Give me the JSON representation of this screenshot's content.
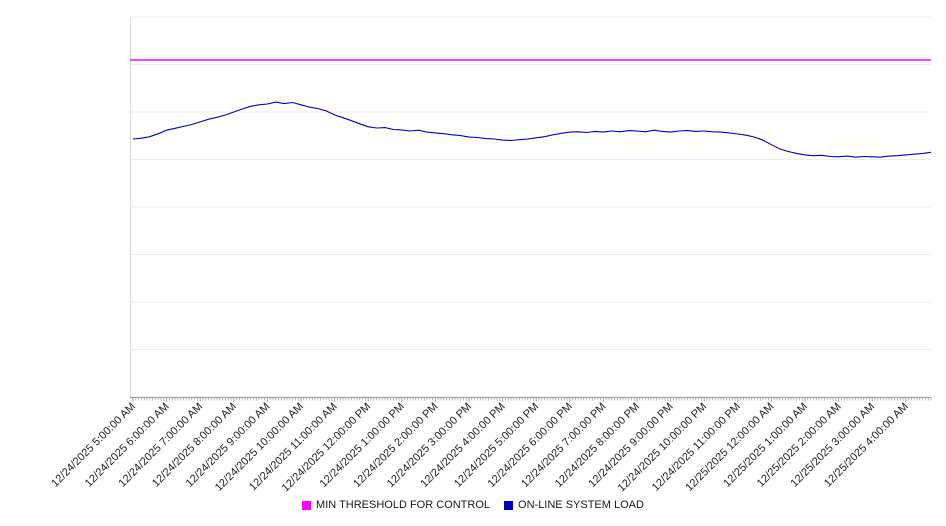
{
  "chart_data": {
    "type": "line",
    "title": "",
    "xlabel": "",
    "ylabel": "",
    "ylim": [
      0,
      100
    ],
    "grid": "horizontal",
    "legend_position": "bottom-center",
    "x_labels": [
      "12/24/2025 5:00:00 AM",
      "12/24/2025 6:00:00 AM",
      "12/24/2025 7:00:00 AM",
      "12/24/2025 8:00:00 AM",
      "12/24/2025 9:00:00 AM",
      "12/24/2025 10:00:00 AM",
      "12/24/2025 11:00:00 AM",
      "12/24/2025 12:00:00 PM",
      "12/24/2025 1:00:00 PM",
      "12/24/2025 2:00:00 PM",
      "12/24/2025 3:00:00 PM",
      "12/24/2025 4:00:00 PM",
      "12/24/2025 5:00:00 PM",
      "12/24/2025 6:00:00 PM",
      "12/24/2025 7:00:00 PM",
      "12/24/2025 8:00:00 PM",
      "12/24/2025 9:00:00 PM",
      "12/24/2025 10:00:00 PM",
      "12/24/2025 11:00:00 PM",
      "12/25/2025 12:00:00 AM",
      "12/25/2025 1:00:00 AM",
      "12/25/2025 2:00:00 AM",
      "12/25/2025 3:00:00 AM",
      "12/25/2025 4:00:00 AM"
    ],
    "x_start": "12/24/2025 5:00:00 AM",
    "x_interval_minutes": 15,
    "series": [
      {
        "name": "MIN THRESHOLD FOR CONTROL",
        "color": "#ff00ff",
        "constant_value": 88.7
      },
      {
        "name": "ON-LINE SYSTEM LOAD",
        "color": "#0000bf",
        "values": [
          67.9,
          68.1,
          68.5,
          69.3,
          70.2,
          70.7,
          71.2,
          71.7,
          72.4,
          73.1,
          73.6,
          74.2,
          75.0,
          75.8,
          76.5,
          76.9,
          77.1,
          77.6,
          77.2,
          77.5,
          76.9,
          76.3,
          75.9,
          75.3,
          74.2,
          73.5,
          72.7,
          71.9,
          71.1,
          70.8,
          70.9,
          70.4,
          70.3,
          70.0,
          70.2,
          69.7,
          69.5,
          69.3,
          69.0,
          68.8,
          68.4,
          68.3,
          68.0,
          67.9,
          67.6,
          67.5,
          67.7,
          67.9,
          68.2,
          68.5,
          69.0,
          69.4,
          69.7,
          69.8,
          69.6,
          69.9,
          69.7,
          70.0,
          69.8,
          70.1,
          70.0,
          69.8,
          70.2,
          69.9,
          69.7,
          70.0,
          70.1,
          69.9,
          70.0,
          69.8,
          69.7,
          69.5,
          69.2,
          68.9,
          68.4,
          67.6,
          66.4,
          65.3,
          64.6,
          64.1,
          63.7,
          63.5,
          63.6,
          63.3,
          63.2,
          63.4,
          63.1,
          63.3,
          63.2,
          63.1,
          63.4,
          63.5,
          63.7,
          63.9,
          64.1,
          64.4
        ]
      }
    ]
  }
}
